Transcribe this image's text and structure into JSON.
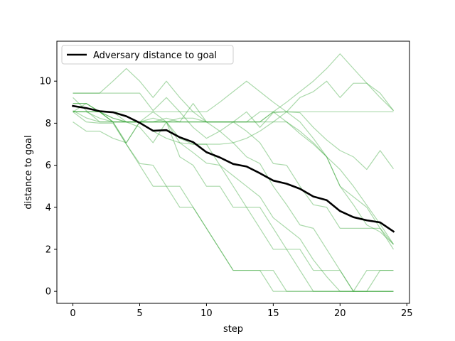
{
  "chart_data": {
    "type": "line",
    "xlabel": "step",
    "ylabel": "distance to goal",
    "xlim": [
      -1.2,
      25.2
    ],
    "ylim": [
      -0.57,
      11.9
    ],
    "xticks": [
      0,
      5,
      10,
      15,
      20,
      25
    ],
    "yticks": [
      0,
      2,
      4,
      6,
      8,
      10
    ],
    "grid": false,
    "legend_position": "top-left",
    "colors": {
      "main": "#000000",
      "trials": "#2ca02c"
    },
    "x": [
      0,
      1,
      2,
      3,
      4,
      5,
      6,
      7,
      8,
      9,
      10,
      11,
      12,
      13,
      14,
      15,
      16,
      17,
      18,
      19,
      20,
      21,
      22,
      23,
      24
    ],
    "series": [
      {
        "name": "Adversary distance to goal",
        "role": "main",
        "values": [
          8.82,
          8.72,
          8.57,
          8.52,
          8.33,
          8.02,
          7.64,
          7.67,
          7.33,
          7.1,
          6.62,
          6.37,
          6.06,
          5.94,
          5.62,
          5.27,
          5.12,
          4.88,
          4.51,
          4.34,
          3.82,
          3.53,
          3.38,
          3.28,
          2.85
        ]
      },
      {
        "role": "trial",
        "values": [
          8.54,
          8.54,
          8.54,
          8.54,
          8.54,
          8.54,
          8.54,
          8.54,
          8.54,
          8.54,
          8.54,
          9.0,
          9.5,
          10.0,
          9.5,
          9.0,
          8.54,
          8.54,
          8.54,
          8.54,
          8.54,
          8.54,
          8.54,
          8.54,
          8.54
        ]
      },
      {
        "role": "trial",
        "values": [
          9.43,
          9.43,
          9.43,
          10.0,
          10.6,
          10.0,
          9.22,
          10.0,
          9.22,
          8.54,
          8.06,
          8.06,
          8.06,
          8.06,
          8.06,
          8.54,
          9.0,
          9.5,
          10.0,
          10.6,
          11.3,
          10.6,
          9.9,
          9.43,
          8.6
        ]
      },
      {
        "role": "trial",
        "values": [
          9.43,
          9.43,
          9.43,
          9.43,
          9.43,
          9.43,
          8.6,
          9.22,
          8.54,
          7.8,
          7.28,
          7.62,
          8.06,
          8.54,
          7.8,
          8.5,
          8.54,
          9.22,
          9.5,
          10.0,
          9.22,
          9.9,
          9.9,
          9.22,
          8.6
        ]
      },
      {
        "role": "trial",
        "values": [
          8.54,
          8.94,
          8.54,
          8.24,
          8.06,
          8.06,
          8.06,
          8.24,
          8.06,
          8.06,
          8.06,
          8.06,
          8.06,
          8.06,
          8.06,
          8.06,
          8.06,
          7.5,
          7.0,
          6.4,
          5.8,
          5.0,
          4.1,
          3.2,
          2.24
        ]
      },
      {
        "role": "trial",
        "values": [
          8.06,
          7.62,
          7.62,
          7.28,
          7.07,
          8.06,
          8.54,
          8.06,
          7.28,
          7.0,
          7.0,
          7.0,
          7.07,
          7.28,
          7.62,
          8.06,
          8.54,
          8.5,
          7.8,
          7.2,
          6.7,
          6.4,
          5.8,
          6.7,
          5.83
        ]
      },
      {
        "role": "trial",
        "values": [
          8.54,
          8.54,
          8.54,
          8.06,
          8.06,
          8.06,
          8.06,
          8.06,
          8.24,
          8.24,
          8.06,
          8.06,
          8.06,
          8.06,
          8.06,
          8.54,
          8.54,
          8.06,
          7.28,
          6.4,
          5.0,
          4.5,
          4.0,
          3.0,
          2.24
        ]
      },
      {
        "role": "trial",
        "values": [
          9.22,
          8.6,
          8.06,
          8.06,
          8.06,
          7.81,
          7.07,
          8.06,
          6.4,
          6.0,
          5.0,
          5.0,
          4.0,
          4.0,
          4.0,
          3.0,
          2.0,
          1.0,
          0.0,
          0.0,
          0.0,
          0.0,
          0.0,
          0.0,
          0.0
        ]
      },
      {
        "role": "trial",
        "values": [
          8.6,
          8.25,
          8.06,
          8.06,
          7.07,
          8.06,
          8.06,
          8.06,
          7.07,
          6.6,
          6.1,
          6.0,
          5.5,
          5.0,
          4.5,
          3.5,
          3.0,
          2.5,
          1.5,
          0.7,
          0.0,
          0.0,
          0.0,
          1.0,
          1.0
        ]
      },
      {
        "role": "trial",
        "values": [
          8.54,
          8.06,
          8.0,
          8.0,
          7.0,
          6.08,
          6.0,
          5.0,
          4.0,
          4.0,
          3.0,
          2.0,
          1.0,
          1.0,
          1.0,
          0.0,
          0.0,
          0.0,
          0.0,
          0.0,
          0.0,
          0.0,
          0.0,
          0.0,
          0.0
        ]
      },
      {
        "role": "trial",
        "values": [
          8.54,
          8.54,
          8.24,
          8.06,
          7.0,
          6.0,
          5.0,
          5.0,
          5.0,
          4.0,
          3.0,
          2.0,
          1.0,
          1.0,
          1.0,
          1.0,
          0.0,
          0.0,
          0.0,
          0.0,
          0.0,
          0.0,
          0.0,
          0.0,
          0.0
        ]
      },
      {
        "role": "trial",
        "values": [
          8.94,
          8.94,
          8.54,
          8.06,
          8.06,
          8.06,
          8.06,
          8.06,
          8.06,
          8.06,
          8.06,
          7.62,
          7.07,
          6.4,
          6.08,
          5.0,
          4.12,
          3.16,
          3.0,
          2.0,
          1.0,
          0.0,
          1.0,
          1.0,
          1.0
        ]
      },
      {
        "role": "trial",
        "values": [
          8.54,
          8.54,
          8.54,
          8.06,
          8.06,
          8.06,
          7.62,
          7.28,
          7.07,
          7.0,
          7.0,
          6.0,
          5.0,
          4.0,
          3.0,
          2.0,
          2.0,
          2.0,
          1.0,
          1.0,
          1.0,
          0.0,
          0.0,
          0.0,
          0.0
        ]
      },
      {
        "role": "trial",
        "values": [
          8.94,
          8.94,
          8.54,
          8.24,
          8.06,
          8.06,
          8.06,
          8.06,
          8.06,
          8.94,
          8.06,
          8.06,
          8.06,
          7.62,
          7.07,
          6.08,
          6.0,
          5.0,
          4.12,
          4.0,
          3.0,
          3.0,
          3.0,
          3.0,
          2.0
        ]
      },
      {
        "role": "trial",
        "values": [
          8.54,
          8.54,
          8.54,
          8.54,
          8.06,
          8.06,
          8.24,
          8.06,
          8.06,
          8.06,
          8.06,
          8.06,
          8.06,
          8.06,
          8.54,
          8.54,
          8.06,
          7.62,
          7.07,
          6.4,
          5.0,
          4.12,
          3.16,
          2.83,
          2.24
        ]
      }
    ]
  }
}
